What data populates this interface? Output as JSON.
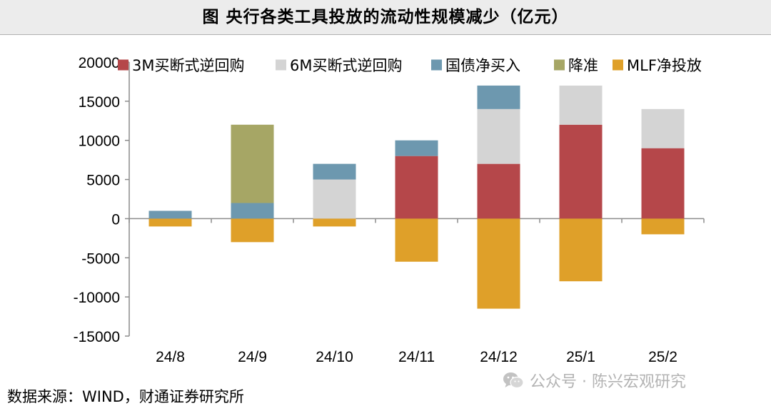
{
  "title": "图  央行各类工具投放的流动性规模减少（亿元）",
  "source": "数据来源：WIND，财通证券研究所",
  "watermark": {
    "icon": "wechat-icon",
    "text": "公众号 · 陈兴宏观研究"
  },
  "chart_data": {
    "type": "bar",
    "stacked": true,
    "title": "图  央行各类工具投放的流动性规模减少（亿元）",
    "xlabel": "",
    "ylabel": "",
    "categories": [
      "24/8",
      "24/9",
      "24/10",
      "24/11",
      "24/12",
      "25/1",
      "25/2"
    ],
    "ylim": [
      -15000,
      20000
    ],
    "yticks": [
      20000,
      15000,
      10000,
      5000,
      0,
      -5000,
      -10000,
      -15000
    ],
    "grid": false,
    "legend_position": "top",
    "series": [
      {
        "name": "3M买断式逆回购",
        "color": "#b5474a",
        "values": [
          0,
          0,
          0,
          8000,
          7000,
          12000,
          9000
        ]
      },
      {
        "name": "6M买断式逆回购",
        "color": "#d4d4d4",
        "values": [
          0,
          0,
          5000,
          0,
          7000,
          5000,
          5000
        ]
      },
      {
        "name": "国债净买入",
        "color": "#6d98af",
        "values": [
          1000,
          2000,
          2000,
          2000,
          3000,
          0,
          0
        ]
      },
      {
        "name": "降准",
        "color": "#a6a665",
        "values": [
          0,
          10000,
          0,
          0,
          0,
          0,
          0
        ]
      },
      {
        "name": "MLF净投放",
        "color": "#dfa029",
        "values": [
          -1000,
          -3000,
          -1000,
          -5500,
          -11500,
          -8000,
          -2000
        ]
      }
    ]
  }
}
